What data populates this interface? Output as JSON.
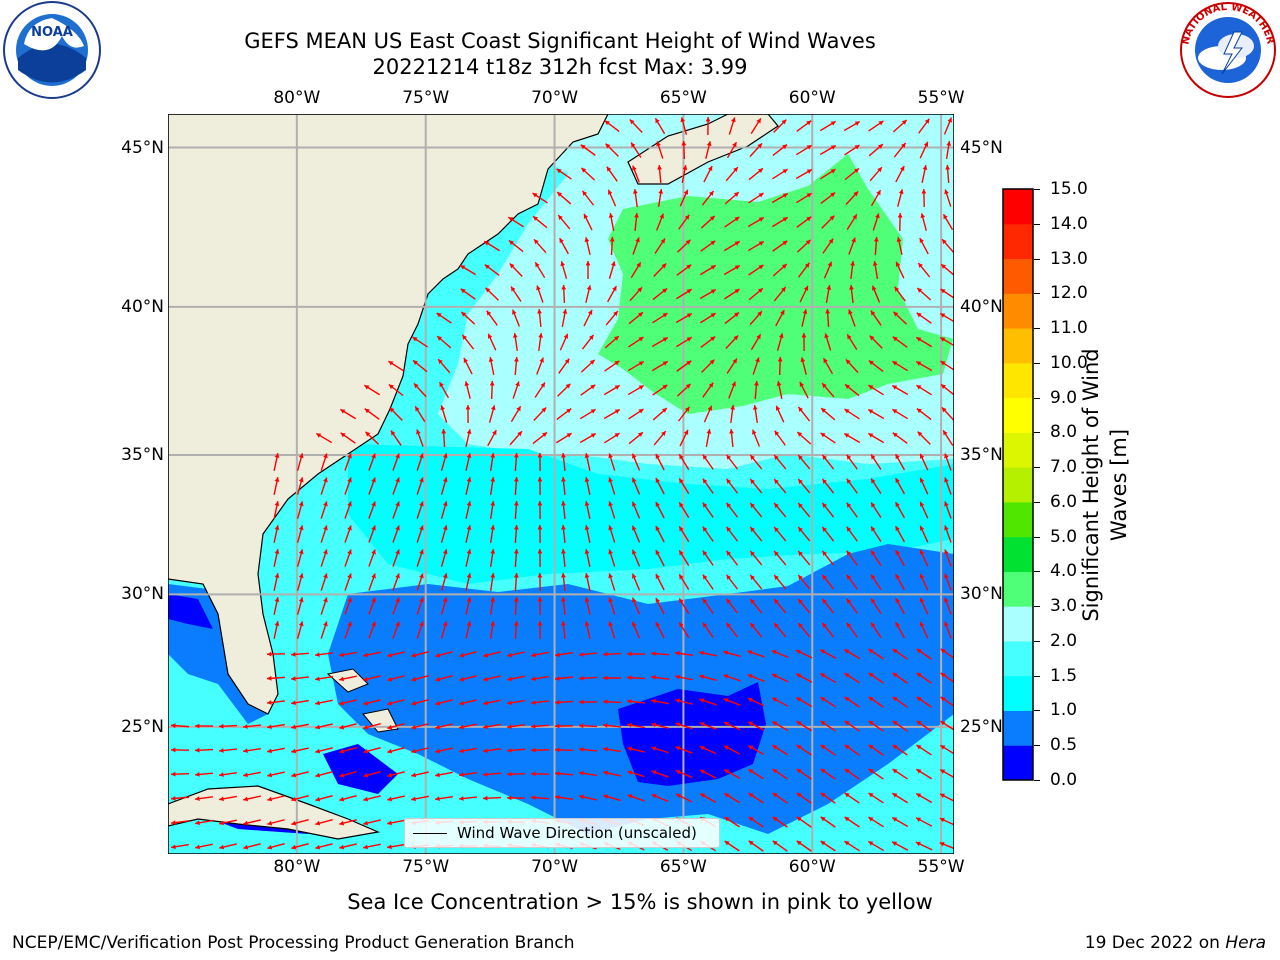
{
  "header": {
    "title_line1": "GEFS MEAN US East Coast Significant Height of Wind Waves",
    "title_line2": "20221214 t18z 312h fcst   Max: 3.99"
  },
  "logos": {
    "noaa_text": "NOAA",
    "noaa_ring_text": "NATIONAL OCEANIC AND ATMOSPHERIC ADMINISTRATION · U.S. DEPARTMENT OF COMMERCE",
    "nws_ring_text": "NATIONAL WEATHER SERVICE"
  },
  "map": {
    "lon_labels": [
      "80°W",
      "75°W",
      "70°W",
      "65°W",
      "60°W",
      "55°W"
    ],
    "lat_labels": [
      "45°N",
      "40°N",
      "35°N",
      "30°N",
      "25°N"
    ],
    "lon_range": [
      -85,
      -54.5
    ],
    "lat_range": [
      20,
      46
    ],
    "legend_label": "Wind Wave Direction (unscaled)",
    "land_color": "#efeddc",
    "arrow_color": "#ff0000"
  },
  "colorbar": {
    "label_line1": "Significant Height of Wind",
    "label_line2": "Waves [m]",
    "ticks": [
      "0.0",
      "0.5",
      "1.0",
      "1.5",
      "2.0",
      "3.0",
      "4.0",
      "5.0",
      "6.0",
      "7.0",
      "8.0",
      "9.0",
      "10.0",
      "11.0",
      "12.0",
      "13.0",
      "14.0",
      "15.0"
    ],
    "colors": [
      "#0000ff",
      "#0a7dff",
      "#00ffff",
      "#46ffff",
      "#aaffff",
      "#50ff78",
      "#00e132",
      "#50e600",
      "#b4f000",
      "#dcf500",
      "#ffff00",
      "#ffe600",
      "#ffbe00",
      "#ff8c00",
      "#ff5a00",
      "#ff2800",
      "#ff0000"
    ]
  },
  "footer": {
    "sea_ice_note": "Sea Ice Concentration > 15% is shown in pink to yellow",
    "producer": "NCEP/EMC/Verification Post Processing Product Generation Branch",
    "date": "19 Dec 2022 on ",
    "machine": "Hera"
  }
}
